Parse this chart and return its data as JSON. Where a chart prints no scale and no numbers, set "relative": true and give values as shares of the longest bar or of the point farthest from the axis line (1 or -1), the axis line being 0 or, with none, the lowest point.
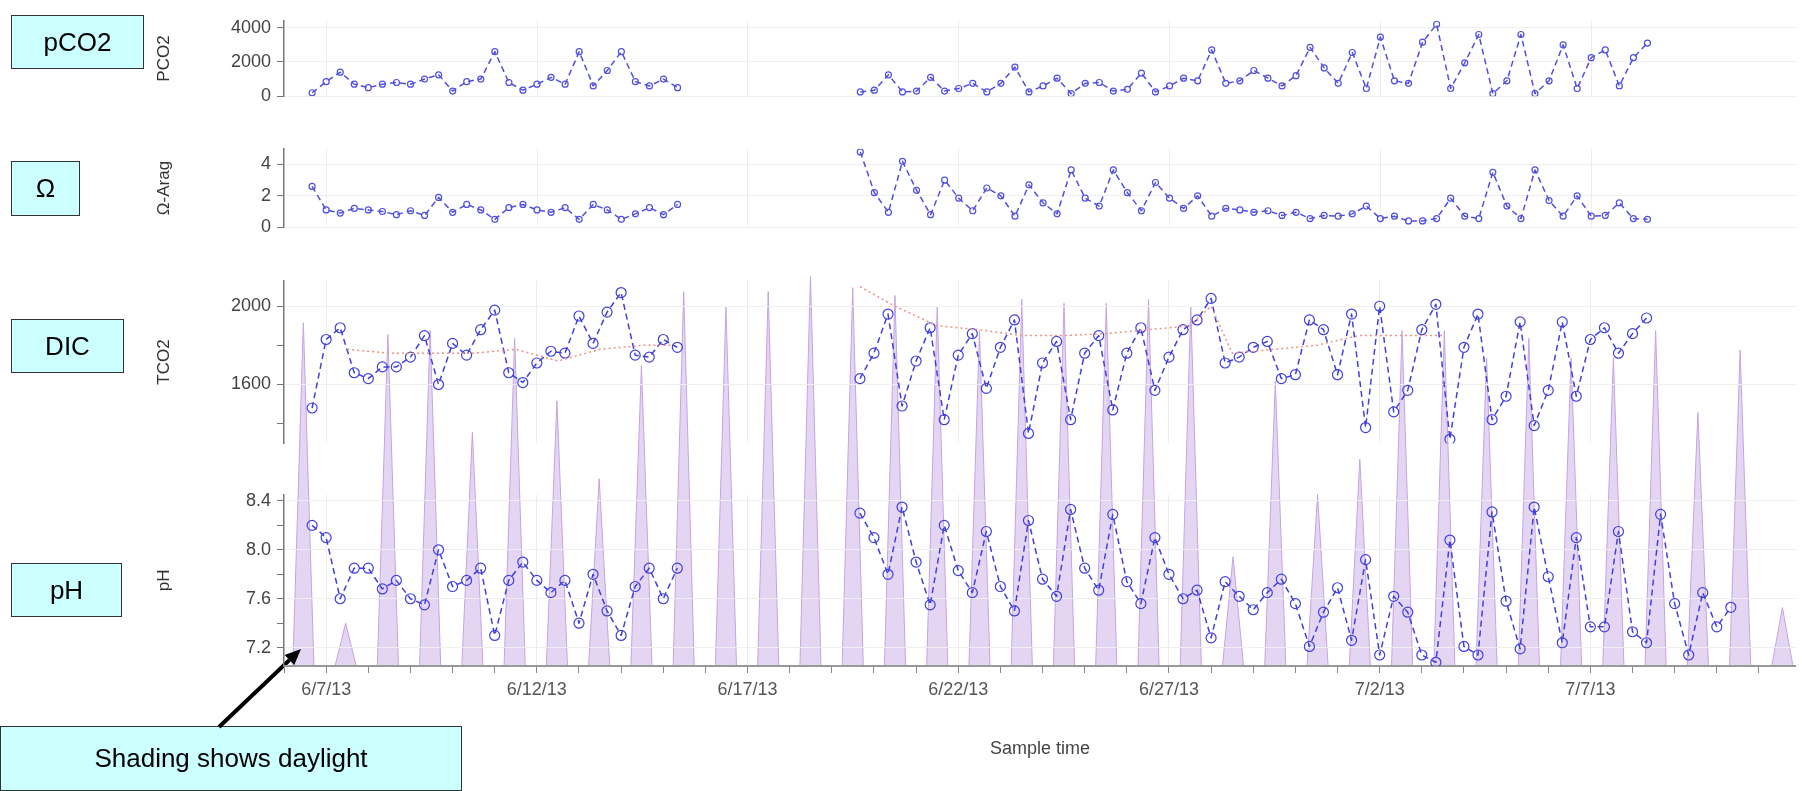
{
  "chart_data": [
    {
      "type": "line",
      "ylabel": "PCO2",
      "annotations": [
        "pCO2"
      ],
      "grid": true,
      "tick_labels": "y",
      "marker": "circle",
      "line_style": "dashed",
      "xlim": [
        "--06-06",
        "--07-11T21:00"
      ],
      "ylim": [
        0,
        4400
      ],
      "yticks": [
        0,
        2000,
        4000
      ],
      "xticks": [
        {
          "value": "--06-07",
          "label": null
        },
        {
          "value": "--06-12",
          "label": null
        },
        {
          "value": "--06-17",
          "label": null
        },
        {
          "value": "--06-22",
          "label": null
        },
        {
          "value": "--06-27",
          "label": null
        },
        {
          "value": "--07-02",
          "label": null
        },
        {
          "value": "--07-07",
          "label": null
        }
      ],
      "x": [
        "--06-06T16:00",
        "--06-07T00:00",
        "--06-07T08:00",
        "--06-07T16:00",
        "--06-08T00:00",
        "--06-08T08:00",
        "--06-08T16:00",
        "--06-09T00:00",
        "--06-09T08:00",
        "--06-09T16:00",
        "--06-10T00:00",
        "--06-10T08:00",
        "--06-10T16:00",
        "--06-11T00:00",
        "--06-11T08:00",
        "--06-11T16:00",
        "--06-12T00:00",
        "--06-12T08:00",
        "--06-12T16:00",
        "--06-13T00:00",
        "--06-13T08:00",
        "--06-13T16:00",
        "--06-14T00:00",
        "--06-14T08:00",
        "--06-14T16:00",
        "--06-15T00:00",
        "--06-15T08:00",
        "--06-17T00:00",
        "--06-19T16:00",
        "--06-20T00:00",
        "--06-20T08:00",
        "--06-20T16:00",
        "--06-21T00:00",
        "--06-21T08:00",
        "--06-21T16:00",
        "--06-22T00:00",
        "--06-22T08:00",
        "--06-22T16:00",
        "--06-23T00:00",
        "--06-23T08:00",
        "--06-23T16:00",
        "--06-24T00:00",
        "--06-24T08:00",
        "--06-24T16:00",
        "--06-25T00:00",
        "--06-25T08:00",
        "--06-25T16:00",
        "--06-26T00:00",
        "--06-26T08:00",
        "--06-26T16:00",
        "--06-27T00:00",
        "--06-27T08:00",
        "--06-27T16:00",
        "--06-28T00:00",
        "--06-28T08:00",
        "--06-28T16:00",
        "--06-29T00:00",
        "--06-29T08:00",
        "--06-29T16:00",
        "--06-30T00:00",
        "--06-30T08:00",
        "--06-30T16:00",
        "--07-01T00:00",
        "--07-01T08:00",
        "--07-01T16:00",
        "--07-02T00:00",
        "--07-02T08:00",
        "--07-02T16:00",
        "--07-03T00:00",
        "--07-03T08:00",
        "--07-03T16:00",
        "--07-04T00:00",
        "--07-04T08:00",
        "--07-04T16:00",
        "--07-05T00:00",
        "--07-05T08:00",
        "--07-05T16:00",
        "--07-06T00:00",
        "--07-06T08:00",
        "--07-06T16:00",
        "--07-07T00:00",
        "--07-07T08:00",
        "--07-07T16:00",
        "--07-08T00:00",
        "--07-08T08:00"
      ],
      "series": [
        {
          "color": "#5050e0",
          "values": [
            200,
            850,
            1400,
            700,
            500,
            700,
            800,
            700,
            1000,
            1250,
            300,
            850,
            1000,
            2600,
            800,
            350,
            700,
            1100,
            700,
            2600,
            600,
            1500,
            2600,
            850,
            600,
            1000,
            500,
            null,
            250,
            350,
            1250,
            250,
            300,
            1100,
            300,
            450,
            750,
            250,
            750,
            1700,
            250,
            600,
            1050,
            150,
            750,
            800,
            300,
            400,
            1350,
            250,
            600,
            1050,
            900,
            2700,
            750,
            900,
            1500,
            1050,
            600,
            1200,
            2850,
            1650,
            750,
            2550,
            450,
            3450,
            900,
            750,
            3150,
            4200,
            450,
            1950,
            3600,
            150,
            900,
            3600,
            150,
            900,
            3000,
            450,
            2250,
            2700,
            600,
            2250,
            3100
          ]
        }
      ]
    },
    {
      "type": "line",
      "ylabel": "Ω-Arag",
      "annotations": [
        "Ω"
      ],
      "grid": true,
      "tick_labels": "y",
      "marker": "circle",
      "line_style": "dashed",
      "xlim": [
        "--06-06",
        "--07-11T21:00"
      ],
      "ylim": [
        0,
        5
      ],
      "yticks": [
        0,
        2,
        4
      ],
      "xticks": [
        {
          "value": "--06-07",
          "label": null
        },
        {
          "value": "--06-12",
          "label": null
        },
        {
          "value": "--06-17",
          "label": null
        },
        {
          "value": "--06-22",
          "label": null
        },
        {
          "value": "--06-27",
          "label": null
        },
        {
          "value": "--07-02",
          "label": null
        },
        {
          "value": "--07-07",
          "label": null
        }
      ],
      "x": [
        "--06-06T16:00",
        "--06-07T00:00",
        "--06-07T08:00",
        "--06-07T16:00",
        "--06-08T00:00",
        "--06-08T08:00",
        "--06-08T16:00",
        "--06-09T00:00",
        "--06-09T08:00",
        "--06-09T16:00",
        "--06-10T00:00",
        "--06-10T08:00",
        "--06-10T16:00",
        "--06-11T00:00",
        "--06-11T08:00",
        "--06-11T16:00",
        "--06-12T00:00",
        "--06-12T08:00",
        "--06-12T16:00",
        "--06-13T00:00",
        "--06-13T08:00",
        "--06-13T16:00",
        "--06-14T00:00",
        "--06-14T08:00",
        "--06-14T16:00",
        "--06-15T00:00",
        "--06-15T08:00",
        "--06-17T00:00",
        "--06-19T16:00",
        "--06-20T00:00",
        "--06-20T08:00",
        "--06-20T16:00",
        "--06-21T00:00",
        "--06-21T08:00",
        "--06-21T16:00",
        "--06-22T00:00",
        "--06-22T08:00",
        "--06-22T16:00",
        "--06-23T00:00",
        "--06-23T08:00",
        "--06-23T16:00",
        "--06-24T00:00",
        "--06-24T08:00",
        "--06-24T16:00",
        "--06-25T00:00",
        "--06-25T08:00",
        "--06-25T16:00",
        "--06-26T00:00",
        "--06-26T08:00",
        "--06-26T16:00",
        "--06-27T00:00",
        "--06-27T08:00",
        "--06-27T16:00",
        "--06-28T00:00",
        "--06-28T08:00",
        "--06-28T16:00",
        "--06-29T00:00",
        "--06-29T08:00",
        "--06-29T16:00",
        "--06-30T00:00",
        "--06-30T08:00",
        "--06-30T16:00",
        "--07-01T00:00",
        "--07-01T08:00",
        "--07-01T16:00",
        "--07-02T00:00",
        "--07-02T08:00",
        "--07-02T16:00",
        "--07-03T00:00",
        "--07-03T08:00",
        "--07-03T16:00",
        "--07-04T00:00",
        "--07-04T08:00",
        "--07-04T16:00",
        "--07-05T00:00",
        "--07-05T08:00",
        "--07-05T16:00",
        "--07-06T00:00",
        "--07-06T08:00",
        "--07-06T16:00",
        "--07-07T00:00",
        "--07-07T08:00",
        "--07-07T16:00",
        "--07-08T00:00",
        "--07-08T08:00"
      ],
      "series": [
        {
          "color": "#5050e0",
          "values": [
            2.6,
            1.1,
            0.9,
            1.2,
            1.1,
            1.0,
            0.8,
            1.05,
            0.75,
            1.9,
            0.95,
            1.45,
            1.1,
            0.5,
            1.25,
            1.45,
            1.1,
            0.95,
            1.25,
            0.5,
            1.45,
            1.1,
            0.5,
            0.85,
            1.25,
            0.8,
            1.45,
            null,
            4.8,
            2.2,
            0.95,
            4.2,
            2.35,
            0.8,
            3.0,
            1.85,
            1.05,
            2.5,
            2.0,
            0.7,
            2.7,
            1.55,
            0.85,
            3.65,
            1.85,
            1.35,
            3.65,
            2.2,
            1.05,
            2.85,
            1.85,
            1.2,
            2.0,
            0.7,
            1.2,
            1.1,
            0.95,
            1.05,
            0.75,
            0.95,
            0.55,
            0.75,
            0.7,
            0.85,
            1.35,
            0.55,
            0.7,
            0.4,
            0.4,
            0.55,
            1.85,
            0.7,
            0.55,
            3.5,
            1.35,
            0.55,
            3.65,
            1.7,
            0.7,
            2.0,
            0.7,
            0.75,
            1.55,
            0.55,
            0.5
          ]
        }
      ]
    },
    {
      "type": "line",
      "ylabel": "TCO2",
      "annotations": [
        "DIC"
      ],
      "grid": true,
      "tick_labels": "y",
      "marker": "circle",
      "line_style": "dashed",
      "xlim": [
        "--06-06",
        "--07-11T21:00"
      ],
      "ylim": [
        1300,
        2130
      ],
      "yticks": [
        {
          "value": 1400,
          "label": null
        },
        1600,
        {
          "value": 1800,
          "label": null
        },
        2000
      ],
      "xticks": [
        {
          "value": "--06-07",
          "label": null
        },
        {
          "value": "--06-12",
          "label": null
        },
        {
          "value": "--06-17",
          "label": null
        },
        {
          "value": "--06-22",
          "label": null
        },
        {
          "value": "--06-27",
          "label": null
        },
        {
          "value": "--07-02",
          "label": null
        },
        {
          "value": "--07-07",
          "label": null
        }
      ],
      "x": [
        "--06-06T16:00",
        "--06-07T00:00",
        "--06-07T08:00",
        "--06-07T16:00",
        "--06-08T00:00",
        "--06-08T08:00",
        "--06-08T16:00",
        "--06-09T00:00",
        "--06-09T08:00",
        "--06-09T16:00",
        "--06-10T00:00",
        "--06-10T08:00",
        "--06-10T16:00",
        "--06-11T00:00",
        "--06-11T08:00",
        "--06-11T16:00",
        "--06-12T00:00",
        "--06-12T08:00",
        "--06-12T16:00",
        "--06-13T00:00",
        "--06-13T08:00",
        "--06-13T16:00",
        "--06-14T00:00",
        "--06-14T08:00",
        "--06-14T16:00",
        "--06-15T00:00",
        "--06-15T08:00",
        "--06-17T00:00",
        "--06-19T16:00",
        "--06-20T00:00",
        "--06-20T08:00",
        "--06-20T16:00",
        "--06-21T00:00",
        "--06-21T08:00",
        "--06-21T16:00",
        "--06-22T00:00",
        "--06-22T08:00",
        "--06-22T16:00",
        "--06-23T00:00",
        "--06-23T08:00",
        "--06-23T16:00",
        "--06-24T00:00",
        "--06-24T08:00",
        "--06-24T16:00",
        "--06-25T00:00",
        "--06-25T08:00",
        "--06-25T16:00",
        "--06-26T00:00",
        "--06-26T08:00",
        "--06-26T16:00",
        "--06-27T00:00",
        "--06-27T08:00",
        "--06-27T16:00",
        "--06-28T00:00",
        "--06-28T08:00",
        "--06-28T16:00",
        "--06-29T00:00",
        "--06-29T08:00",
        "--06-29T16:00",
        "--06-30T00:00",
        "--06-30T08:00",
        "--06-30T16:00",
        "--07-01T00:00",
        "--07-01T08:00",
        "--07-01T16:00",
        "--07-02T00:00",
        "--07-02T08:00",
        "--07-02T16:00",
        "--07-03T00:00",
        "--07-03T08:00",
        "--07-03T16:00",
        "--07-04T00:00",
        "--07-04T08:00",
        "--07-04T16:00",
        "--07-05T00:00",
        "--07-05T08:00",
        "--07-05T16:00",
        "--07-06T00:00",
        "--07-06T08:00",
        "--07-06T16:00",
        "--07-07T00:00",
        "--07-07T08:00",
        "--07-07T16:00",
        "--07-08T00:00",
        "--07-08T08:00"
      ],
      "series": [
        {
          "color": "#f09080",
          "marker": "none",
          "line_style": "dotted",
          "x": [
            "--06-07T12:00",
            "--06-08T12:00",
            "--06-09T12:00",
            "--06-10T12:00",
            "--06-11T12:00",
            "--06-12T12:00",
            "--06-13T12:00",
            "--06-14T12:00",
            "--06-15T06:00",
            "--06-17T00:00",
            "--06-19T16:00",
            "--06-20T12:00",
            "--06-21T12:00",
            "--06-22T12:00",
            "--06-23T12:00",
            "--06-24T12:00",
            "--06-25T12:00",
            "--06-26T12:00",
            "--06-27T12:00",
            "--06-28T00:00",
            "--06-28T12:00",
            "--06-29T12:00",
            "--06-30T12:00",
            "--07-01T12:00",
            "--07-02T12:00",
            "--07-03T12:00"
          ],
          "values": [
            1780,
            1760,
            1760,
            1760,
            1780,
            1720,
            1780,
            1800,
            1800,
            null,
            2100,
            2000,
            1900,
            1880,
            1850,
            1850,
            1860,
            1880,
            1900,
            2000,
            1760,
            1780,
            1800,
            1850,
            1850,
            1850
          ]
        },
        {
          "color": "#4040dc",
          "values": [
            1480,
            1830,
            1890,
            1660,
            1630,
            1690,
            1690,
            1740,
            1850,
            1600,
            1810,
            1750,
            1880,
            1980,
            1660,
            1610,
            1710,
            1770,
            1760,
            1950,
            1810,
            1970,
            2070,
            1750,
            1740,
            1830,
            1790,
            null,
            1630,
            1760,
            1960,
            1490,
            1720,
            1890,
            1420,
            1750,
            1860,
            1580,
            1790,
            1930,
            1350,
            1710,
            1820,
            1420,
            1760,
            1850,
            1470,
            1760,
            1890,
            1570,
            1740,
            1880,
            1930,
            2040,
            1710,
            1740,
            1790,
            1820,
            1630,
            1650,
            1930,
            1880,
            1650,
            1960,
            1380,
            2000,
            1460,
            1570,
            1880,
            2010,
            1320,
            1790,
            1960,
            1420,
            1540,
            1920,
            1390,
            1570,
            1920,
            1540,
            1830,
            1890,
            1760,
            1860,
            1940
          ]
        }
      ]
    },
    {
      "type": "line",
      "ylabel": "pH",
      "xlabel": "Sample time",
      "annotations": [
        "pH"
      ],
      "grid": true,
      "marker": "circle",
      "line_style": "dashed",
      "xlim": [
        "--06-06",
        "--07-11T21:00"
      ],
      "ylim": [
        7.05,
        8.45
      ],
      "yticks": [
        7.2,
        {
          "value": 7.4,
          "label": null
        },
        7.6,
        {
          "value": 7.8,
          "label": null
        },
        {
          "value": 8.0,
          "label": "8.0"
        },
        {
          "value": 8.2,
          "label": null
        },
        8.4
      ],
      "xticks": [
        {
          "value": "--06-06",
          "label": null
        },
        {
          "value": "--06-07",
          "label": "6/7/13"
        },
        {
          "value": "--06-08",
          "label": null
        },
        {
          "value": "--06-09",
          "label": null
        },
        {
          "value": "--06-10",
          "label": null
        },
        {
          "value": "--06-11",
          "label": null
        },
        {
          "value": "--06-12",
          "label": "6/12/13"
        },
        {
          "value": "--06-13",
          "label": null
        },
        {
          "value": "--06-14",
          "label": null
        },
        {
          "value": "--06-15",
          "label": null
        },
        {
          "value": "--06-16",
          "label": null
        },
        {
          "value": "--06-17",
          "label": "6/17/13"
        },
        {
          "value": "--06-18",
          "label": null
        },
        {
          "value": "--06-19",
          "label": null
        },
        {
          "value": "--06-20",
          "label": null
        },
        {
          "value": "--06-21",
          "label": null
        },
        {
          "value": "--06-22",
          "label": "6/22/13"
        },
        {
          "value": "--06-23",
          "label": null
        },
        {
          "value": "--06-24",
          "label": null
        },
        {
          "value": "--06-25",
          "label": null
        },
        {
          "value": "--06-26",
          "label": null
        },
        {
          "value": "--06-27",
          "label": "6/27/13"
        },
        {
          "value": "--06-28",
          "label": null
        },
        {
          "value": "--06-29",
          "label": null
        },
        {
          "value": "--06-30",
          "label": null
        },
        {
          "value": "--07-01",
          "label": null
        },
        {
          "value": "--07-02",
          "label": "7/2/13"
        },
        {
          "value": "--07-03",
          "label": null
        },
        {
          "value": "--07-04",
          "label": null
        },
        {
          "value": "--07-05",
          "label": null
        },
        {
          "value": "--07-06",
          "label": null
        },
        {
          "value": "--07-07",
          "label": "7/7/13"
        },
        {
          "value": "--07-08",
          "label": null
        },
        {
          "value": "--07-09",
          "label": null
        },
        {
          "value": "--07-10",
          "label": null
        },
        {
          "value": "--07-11",
          "label": null
        }
      ],
      "x": [
        "--06-06T16:00",
        "--06-07T00:00",
        "--06-07T08:00",
        "--06-07T16:00",
        "--06-08T00:00",
        "--06-08T08:00",
        "--06-08T16:00",
        "--06-09T00:00",
        "--06-09T08:00",
        "--06-09T16:00",
        "--06-10T00:00",
        "--06-10T08:00",
        "--06-10T16:00",
        "--06-11T00:00",
        "--06-11T08:00",
        "--06-11T16:00",
        "--06-12T00:00",
        "--06-12T08:00",
        "--06-12T16:00",
        "--06-13T00:00",
        "--06-13T08:00",
        "--06-13T16:00",
        "--06-14T00:00",
        "--06-14T08:00",
        "--06-14T16:00",
        "--06-15T00:00",
        "--06-15T08:00",
        "--06-17T00:00",
        "--06-19T16:00",
        "--06-20T00:00",
        "--06-20T08:00",
        "--06-20T16:00",
        "--06-21T00:00",
        "--06-21T08:00",
        "--06-21T16:00",
        "--06-22T00:00",
        "--06-22T08:00",
        "--06-22T16:00",
        "--06-23T00:00",
        "--06-23T08:00",
        "--06-23T16:00",
        "--06-24T00:00",
        "--06-24T08:00",
        "--06-24T16:00",
        "--06-25T00:00",
        "--06-25T08:00",
        "--06-25T16:00",
        "--06-26T00:00",
        "--06-26T08:00",
        "--06-26T16:00",
        "--06-27T00:00",
        "--06-27T08:00",
        "--06-27T16:00",
        "--06-28T00:00",
        "--06-28T08:00",
        "--06-28T16:00",
        "--06-29T00:00",
        "--06-29T08:00",
        "--06-29T16:00",
        "--06-30T00:00",
        "--06-30T08:00",
        "--06-30T16:00",
        "--07-01T00:00",
        "--07-01T08:00",
        "--07-01T16:00",
        "--07-02T00:00",
        "--07-02T08:00",
        "--07-02T16:00",
        "--07-03T00:00",
        "--07-03T08:00",
        "--07-03T16:00",
        "--07-04T00:00",
        "--07-04T08:00",
        "--07-04T16:00",
        "--07-05T00:00",
        "--07-05T08:00",
        "--07-05T16:00",
        "--07-06T00:00",
        "--07-06T08:00",
        "--07-06T16:00",
        "--07-07T00:00",
        "--07-07T08:00",
        "--07-07T16:00",
        "--07-08T00:00",
        "--07-08T08:00",
        "--07-08T16:00",
        "--07-09T00:00",
        "--07-09T08:00",
        "--07-09T16:00",
        "--07-10T00:00",
        "--07-10T08:00"
      ],
      "series": [
        {
          "color": "#4040dc",
          "values": [
            8.2,
            8.1,
            7.6,
            7.85,
            7.85,
            7.68,
            7.75,
            7.6,
            7.55,
            8.0,
            7.7,
            7.75,
            7.85,
            7.3,
            7.75,
            7.9,
            7.75,
            7.65,
            7.75,
            7.4,
            7.8,
            7.5,
            7.3,
            7.7,
            7.85,
            7.6,
            7.85,
            null,
            8.3,
            8.1,
            7.8,
            8.35,
            7.9,
            7.55,
            8.2,
            7.83,
            7.65,
            8.15,
            7.7,
            7.5,
            8.24,
            7.76,
            7.62,
            8.33,
            7.85,
            7.67,
            8.29,
            7.74,
            7.56,
            8.1,
            7.8,
            7.6,
            7.67,
            7.28,
            7.74,
            7.62,
            7.51,
            7.65,
            7.76,
            7.56,
            7.21,
            7.49,
            7.69,
            7.26,
            7.92,
            7.14,
            7.62,
            7.49,
            7.14,
            7.08,
            8.08,
            7.21,
            7.14,
            8.31,
            7.58,
            7.19,
            8.35,
            7.78,
            7.24,
            8.1,
            7.37,
            7.37,
            8.15,
            7.33,
            7.24,
            8.29,
            7.56,
            7.14,
            7.65,
            7.37,
            7.53
          ]
        }
      ]
    },
    {
      "type": "area",
      "relative": true,
      "tick_labels": false,
      "annotations": [
        "Shading shows daylight"
      ],
      "xlim": [
        "--06-06",
        "--07-11T21:00"
      ],
      "x": [
        "--06-06T05:00",
        "--06-06T11:00",
        "--06-06T17:00",
        "--06-07T05:00",
        "--06-07T11:00",
        "--06-07T17:00",
        "--06-08T05:00",
        "--06-08T11:00",
        "--06-08T17:00",
        "--06-09T05:00",
        "--06-09T11:00",
        "--06-09T17:00",
        "--06-10T05:00",
        "--06-10T11:00",
        "--06-10T17:00",
        "--06-11T05:00",
        "--06-11T11:00",
        "--06-11T17:00",
        "--06-12T05:00",
        "--06-12T11:00",
        "--06-12T17:00",
        "--06-13T05:00",
        "--06-13T11:00",
        "--06-13T17:00",
        "--06-14T05:00",
        "--06-14T11:00",
        "--06-14T17:00",
        "--06-15T05:00",
        "--06-15T11:00",
        "--06-15T17:00",
        "--06-16T05:00",
        "--06-16T11:00",
        "--06-16T17:00",
        "--06-17T05:00",
        "--06-17T11:00",
        "--06-17T17:00",
        "--06-18T05:00",
        "--06-18T11:00",
        "--06-18T17:00",
        "--06-19T05:00",
        "--06-19T11:00",
        "--06-19T17:00",
        "--06-20T05:00",
        "--06-20T11:00",
        "--06-20T17:00",
        "--06-21T05:00",
        "--06-21T11:00",
        "--06-21T17:00",
        "--06-22T05:00",
        "--06-22T11:00",
        "--06-22T17:00",
        "--06-23T05:00",
        "--06-23T11:00",
        "--06-23T17:00",
        "--06-24T05:00",
        "--06-24T11:00",
        "--06-24T17:00",
        "--06-25T05:00",
        "--06-25T11:00",
        "--06-25T17:00",
        "--06-26T05:00",
        "--06-26T11:00",
        "--06-26T17:00",
        "--06-27T05:00",
        "--06-27T11:00",
        "--06-27T17:00",
        "--06-28T05:00",
        "--06-28T11:00",
        "--06-28T17:00",
        "--06-29T05:00",
        "--06-29T11:00",
        "--06-29T17:00",
        "--06-30T05:00",
        "--06-30T11:00",
        "--06-30T17:00",
        "--07-01T05:00",
        "--07-01T11:00",
        "--07-01T17:00",
        "--07-02T05:00",
        "--07-02T11:00",
        "--07-02T17:00",
        "--07-03T05:00",
        "--07-03T11:00",
        "--07-03T17:00",
        "--07-04T05:00",
        "--07-04T11:00",
        "--07-04T17:00",
        "--07-05T05:00",
        "--07-05T11:00",
        "--07-05T17:00",
        "--07-06T05:00",
        "--07-06T11:00",
        "--07-06T17:00",
        "--07-07T05:00",
        "--07-07T11:00",
        "--07-07T17:00",
        "--07-08T05:00",
        "--07-08T11:00",
        "--07-08T17:00",
        "--07-09T05:00",
        "--07-09T11:00",
        "--07-09T17:00",
        "--07-10T05:00",
        "--07-10T11:00",
        "--07-10T17:00",
        "--07-11T05:00",
        "--07-11T11:00",
        "--07-11T17:00"
      ],
      "series": [
        {
          "color": "#c4a4e4",
          "values": [
            0,
            0.88,
            0,
            0,
            0.11,
            0,
            0,
            0.85,
            0,
            0,
            0.86,
            0,
            0,
            0.6,
            0,
            0,
            0.84,
            0,
            0,
            0.68,
            0,
            0,
            0.48,
            0,
            0,
            0.77,
            0,
            0,
            0.96,
            0,
            0,
            0.92,
            0,
            0,
            0.96,
            0,
            0,
            1,
            0,
            0,
            0.97,
            0,
            0,
            0.95,
            0,
            0,
            0.92,
            0,
            0,
            0.86,
            0,
            0,
            0.94,
            0,
            0,
            0.93,
            0,
            0,
            0.93,
            0,
            0,
            0.94,
            0,
            0,
            0.92,
            0,
            0,
            0.28,
            0,
            0,
            0.73,
            0,
            0,
            0.44,
            0,
            0,
            0.53,
            0,
            0,
            0.86,
            0,
            0,
            0.86,
            0,
            0,
            0.79,
            0,
            0,
            0.84,
            0,
            0,
            0.79,
            0,
            0,
            0.79,
            0,
            0,
            0.86,
            0,
            0,
            0.65,
            0,
            0,
            0.81,
            0,
            0,
            0.15,
            0
          ]
        }
      ]
    }
  ]
}
